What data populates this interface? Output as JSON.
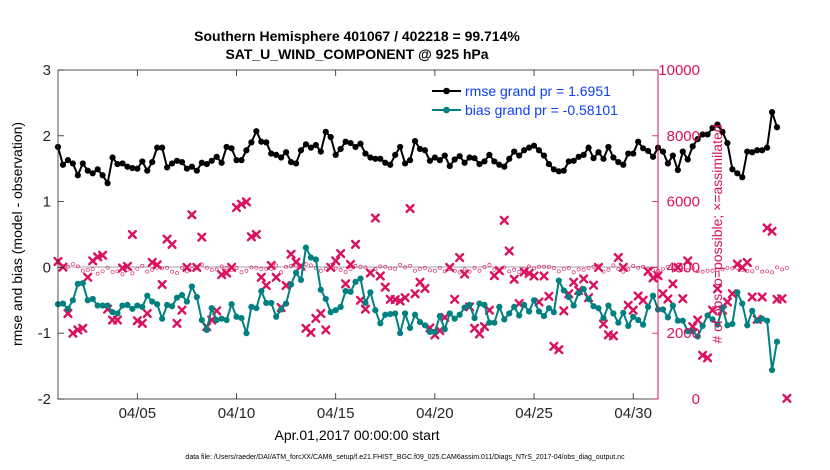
{
  "chart_data": {
    "type": "line",
    "title": "Southern Hemisphere 401067 / 402218 = 99.714%",
    "subtitle": "SAT_U_WIND_COMPONENT @ 925 hPa",
    "xlabel": "Apr.01,2017 00:00:00 start",
    "ylabel": "rmse and bias (model - observation)",
    "y2label": "# of obs: o=possible; ×=assimilated",
    "xlim": [
      1,
      31.25
    ],
    "ylim": [
      -2,
      3
    ],
    "y2lim": [
      0,
      10000
    ],
    "x_ticks": [
      5,
      10,
      15,
      20,
      25,
      30
    ],
    "x_tick_labels": [
      "04/05",
      "04/10",
      "04/15",
      "04/20",
      "04/25",
      "04/30"
    ],
    "y_ticks": [
      -2,
      -1,
      0,
      1,
      2,
      3
    ],
    "y_tick_labels": [
      "-2",
      "-1",
      "0",
      "1",
      "2",
      "3"
    ],
    "y2_ticks": [
      0,
      2000,
      4000,
      6000,
      8000,
      10000
    ],
    "y2_tick_labels": [
      "0",
      "2000",
      "4000",
      "6000",
      "8000",
      "10000"
    ],
    "colors": {
      "rmse": "#000000",
      "bias": "#008080",
      "obs": "#d9115f",
      "zero_line": "#b4b4b4",
      "right_axis": "#d9115f"
    },
    "x_step": 0.25,
    "series": [
      {
        "name": "rmse",
        "legend": "rmse grand pr = 1.6951",
        "axis": "left",
        "values": [
          1.83,
          1.56,
          1.63,
          1.58,
          1.4,
          1.58,
          1.47,
          1.43,
          1.49,
          1.4,
          1.28,
          1.67,
          1.57,
          1.58,
          1.53,
          1.51,
          1.5,
          1.61,
          1.47,
          1.6,
          1.82,
          1.82,
          1.52,
          1.58,
          1.62,
          1.6,
          1.5,
          1.53,
          1.47,
          1.59,
          1.57,
          1.62,
          1.68,
          1.59,
          1.83,
          1.81,
          1.63,
          1.63,
          1.78,
          1.9,
          2.07,
          1.91,
          1.9,
          1.73,
          1.71,
          1.67,
          1.75,
          1.6,
          1.58,
          1.78,
          1.87,
          1.82,
          1.86,
          1.76,
          2.06,
          1.98,
          1.71,
          1.8,
          1.91,
          1.89,
          1.83,
          1.88,
          1.73,
          1.67,
          1.65,
          1.65,
          1.59,
          1.56,
          1.71,
          1.83,
          1.58,
          1.63,
          1.92,
          1.8,
          1.78,
          1.62,
          1.67,
          1.63,
          1.7,
          1.54,
          1.64,
          1.69,
          1.59,
          1.67,
          1.66,
          1.57,
          1.61,
          1.71,
          1.61,
          1.56,
          1.53,
          1.65,
          1.76,
          1.7,
          1.78,
          1.82,
          1.85,
          1.78,
          1.7,
          1.57,
          1.49,
          1.46,
          1.47,
          1.61,
          1.62,
          1.68,
          1.71,
          1.82,
          1.66,
          1.75,
          1.65,
          1.83,
          1.67,
          1.6,
          1.56,
          1.73,
          1.73,
          1.91,
          1.81,
          1.77,
          1.68,
          1.82,
          1.76,
          1.58,
          1.7,
          1.48,
          1.76,
          1.64,
          1.84,
          1.95,
          2.02,
          2.02,
          2.12,
          2.17,
          2.06,
          1.89,
          1.49,
          1.43,
          1.37,
          1.76,
          1.75,
          1.78,
          1.78,
          1.82,
          2.36,
          2.13
        ]
      },
      {
        "name": "bias",
        "legend": "bias grand pr = -0.58101",
        "axis": "left",
        "values": [
          -0.56,
          -0.55,
          -0.63,
          -0.5,
          -0.25,
          -0.24,
          -0.5,
          -0.48,
          -0.58,
          -0.58,
          -0.58,
          -0.68,
          -0.7,
          -0.58,
          -0.57,
          -0.63,
          -0.58,
          -0.6,
          -0.43,
          -0.52,
          -0.56,
          -0.78,
          -0.57,
          -0.59,
          -0.46,
          -0.42,
          -0.52,
          -0.29,
          -0.45,
          -0.8,
          -0.95,
          -0.62,
          -0.8,
          -0.78,
          -0.8,
          -0.56,
          -0.75,
          -0.77,
          -1.0,
          -0.6,
          -0.62,
          -0.36,
          -0.54,
          -0.54,
          -0.75,
          -0.64,
          -0.55,
          -0.26,
          -0.08,
          -0.19,
          0.3,
          0.15,
          0.12,
          -0.34,
          -0.48,
          -0.68,
          -0.65,
          -0.6,
          -0.36,
          -0.37,
          -0.22,
          -0.17,
          -0.54,
          -0.38,
          -0.65,
          -0.85,
          -0.72,
          -0.71,
          -0.7,
          -1.0,
          -0.7,
          -0.92,
          -0.72,
          -0.83,
          -0.88,
          -0.98,
          -0.98,
          -0.74,
          -0.94,
          -0.7,
          -0.78,
          -0.72,
          -0.61,
          -0.57,
          -0.77,
          -0.55,
          -0.57,
          -0.84,
          -0.84,
          -0.6,
          -0.79,
          -0.7,
          -0.6,
          -0.73,
          -0.57,
          -0.67,
          -0.5,
          -0.67,
          -0.74,
          -0.62,
          -0.68,
          -0.2,
          -0.35,
          -0.45,
          -0.58,
          -0.39,
          -0.33,
          -0.48,
          -0.59,
          -0.62,
          -0.77,
          -0.58,
          -0.7,
          -0.84,
          -0.69,
          -0.89,
          -0.75,
          -0.8,
          -0.87,
          -0.6,
          -0.43,
          -0.64,
          -0.64,
          -0.76,
          -0.58,
          -0.81,
          -0.81,
          -0.97,
          -0.97,
          -1.05,
          -0.89,
          -0.73,
          -0.79,
          -0.87,
          -0.61,
          -0.88,
          -0.86,
          -0.38,
          -0.55,
          -0.88,
          -0.66,
          -0.81,
          -0.78,
          -0.81,
          -1.56,
          -1.13
        ]
      },
      {
        "name": "obs_possible",
        "legend": "",
        "axis": "right",
        "marker": "o",
        "values": [
          4200,
          4030,
          4020,
          4100,
          4030,
          3900,
          3920,
          3950,
          3810,
          3880,
          3990,
          3860,
          3880,
          3790,
          3930,
          3820,
          3960,
          4050,
          3870,
          3930,
          3990,
          3970,
          3990,
          3870,
          3830,
          3990,
          3880,
          3950,
          3970,
          4090,
          3990,
          3920,
          3940,
          4030,
          3980,
          3920,
          3980,
          3850,
          3900,
          4000,
          3990,
          3950,
          3960,
          3950,
          4060,
          3850,
          4020,
          4040,
          4060,
          4000,
          4100,
          4060,
          3980,
          3900,
          3960,
          4070,
          3970,
          3920,
          3860,
          3950,
          4050,
          4010,
          4000,
          3880,
          3950,
          4030,
          4020,
          3970,
          3960,
          4080,
          4000,
          4050,
          3900,
          3950,
          3980,
          3910,
          3900,
          3990,
          3880,
          3950,
          3900,
          3850,
          3940,
          3870,
          3980,
          3900,
          4010,
          4080,
          3930,
          3910,
          4000,
          3880,
          3930,
          3860,
          3960,
          4030,
          3970,
          4020,
          4020,
          4010,
          3980,
          3880,
          3960,
          3980,
          3850,
          3940,
          3930,
          3980,
          4020,
          4040,
          3870,
          3930,
          4060,
          3950,
          3870,
          3940,
          4040,
          3990,
          4020,
          3940,
          3920,
          3900,
          3960,
          4020,
          4000,
          3990,
          3940,
          3920,
          3980,
          3880,
          3870,
          3900,
          3900,
          3930,
          3940,
          3980,
          3970,
          3990,
          3920,
          3890,
          3880,
          3990,
          3870,
          3880,
          3850,
          4000,
          3940,
          3990
        ]
      },
      {
        "name": "obs_assimilated",
        "legend": "",
        "axis": "right",
        "marker": "x",
        "values": [
          4180,
          4010,
          2600,
          2000,
          2100,
          2150,
          3700,
          4200,
          4320,
          4370,
          2730,
          2400,
          2400,
          3980,
          4030,
          5000,
          2380,
          2300,
          2600,
          4150,
          4080,
          3480,
          4860,
          4700,
          2300,
          2700,
          4000,
          5600,
          4000,
          4920,
          2200,
          2400,
          2680,
          3780,
          3830,
          4000,
          5820,
          5920,
          5990,
          4930,
          5000,
          3700,
          3450,
          4060,
          3700,
          2780,
          3450,
          4400,
          4160,
          4040,
          2150,
          2020,
          2450,
          2600,
          2100,
          4000,
          4200,
          4420,
          3500,
          4090,
          4700,
          3000,
          2730,
          3830,
          5500,
          3740,
          3400,
          3030,
          3020,
          2980,
          3080,
          5790,
          3200,
          3550,
          3360,
          2160,
          1950,
          2080,
          2480,
          4000,
          3030,
          4300,
          3800,
          2800,
          2150,
          1980,
          2200,
          2700,
          3750,
          3900,
          5430,
          4500,
          3640,
          2900,
          3860,
          3820,
          3740,
          2950,
          3740,
          3120,
          1600,
          1500,
          2680,
          3200,
          3550,
          3300,
          3650,
          3080,
          3460,
          4000,
          2280,
          1950,
          1920,
          4300,
          4000,
          2850,
          2700,
          3130,
          3000,
          3880,
          3680,
          3750,
          3200,
          3040,
          3500,
          4000,
          3050,
          4200,
          2200,
          2400,
          1330,
          1250,
          2700,
          3350,
          2700,
          2950,
          3200,
          4100,
          4000,
          4150,
          3100,
          2420,
          3100,
          5200,
          5100,
          3030,
          3050,
          20
        ]
      }
    ]
  },
  "footer": "data file: /Users/raeder/DAI/ATM_forcXX/CAM6_setup/f.e21.FHIST_BGC.f09_025.CAM6assim.011/Diags_NTrS_2017-04/obs_diag_output.nc"
}
